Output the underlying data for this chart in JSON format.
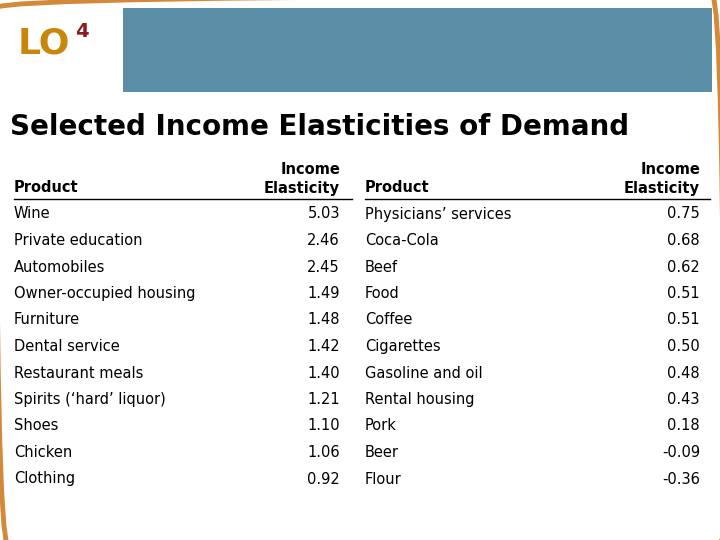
{
  "title": "Selected Income Elasticities of Demand",
  "lo_text": "LO",
  "lo_superscript": "4",
  "header_bg_color": "#5b8fa8",
  "lo_box_color": "#ffffff",
  "lo_text_color": "#c8860a",
  "lo_super_color": "#8b1a1a",
  "border_color": "#d4893a",
  "table_bg_color": "#ffffff",
  "left_products": [
    "Wine",
    "Private education",
    "Automobiles",
    "Owner-occupied housing",
    "Furniture",
    "Dental service",
    "Restaurant meals",
    "Spirits (‘hard’ liquor)",
    "Shoes",
    "Chicken",
    "Clothing"
  ],
  "left_values": [
    "5.03",
    "2.46",
    "2.45",
    "1.49",
    "1.48",
    "1.42",
    "1.40",
    "1.21",
    "1.10",
    "1.06",
    "0.92"
  ],
  "right_products": [
    "Physicians’ services",
    "Coca-Cola",
    "Beef",
    "Food",
    "Coffee",
    "Cigarettes",
    "Gasoline and oil",
    "Rental housing",
    "Pork",
    "Beer",
    "Flour"
  ],
  "right_values": [
    "0.75",
    "0.68",
    "0.62",
    "0.51",
    "0.51",
    "0.50",
    "0.48",
    "0.43",
    "0.18",
    "-0.09",
    "-0.36"
  ],
  "font_size_title": 20,
  "font_size_table": 10.5,
  "font_size_lo": 26,
  "font_size_lo_super": 14
}
